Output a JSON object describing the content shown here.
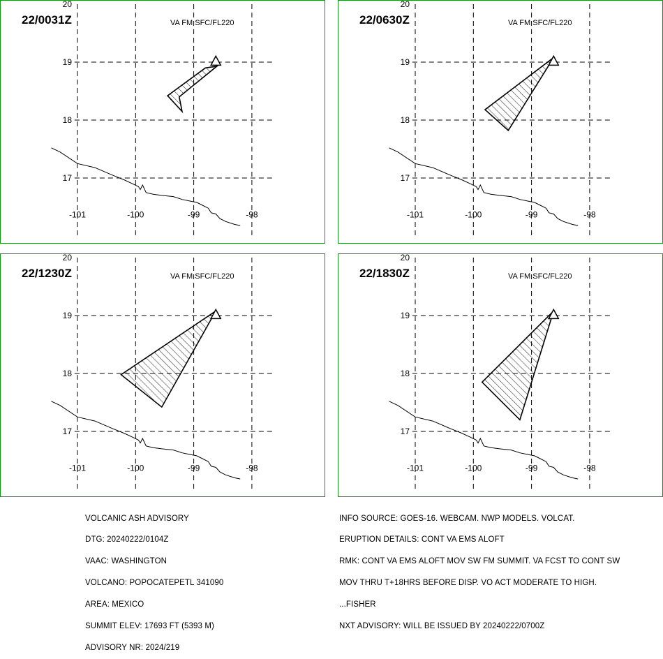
{
  "panels": [
    {
      "time": "22/0031Z",
      "level": "VA FM SFC/FL220",
      "polygon": [
        [
          -99.25,
          18.4
        ],
        [
          -98.6,
          18.93
        ],
        [
          -98.8,
          18.9
        ],
        [
          -99.45,
          18.42
        ],
        [
          -99.2,
          18.15
        ]
      ]
    },
    {
      "time": "22/0630Z",
      "level": "VA FM SFC/FL220",
      "polygon": [
        [
          -98.62,
          19.08
        ],
        [
          -99.8,
          18.18
        ],
        [
          -99.4,
          17.82
        ]
      ]
    },
    {
      "time": "22/1230Z",
      "level": "VA FM SFC/FL220",
      "polygon": [
        [
          -98.62,
          19.08
        ],
        [
          -100.25,
          17.98
        ],
        [
          -99.55,
          17.42
        ]
      ]
    },
    {
      "time": "22/1830Z",
      "level": "VA FM SFC/FL220",
      "polygon": [
        [
          -98.62,
          19.08
        ],
        [
          -99.85,
          17.85
        ],
        [
          -99.2,
          17.2
        ]
      ]
    }
  ],
  "map": {
    "lon_ticks": [
      "-101",
      "-100",
      "-99",
      "-98"
    ],
    "lat_ticks": [
      "17",
      "18",
      "19",
      "20"
    ],
    "lon_values": [
      -101,
      -100,
      -99,
      -98
    ],
    "lat_values": [
      17,
      18,
      19,
      20
    ],
    "volcano": {
      "lon": -98.62,
      "lat": 19.02
    },
    "coastline": [
      [
        -101.45,
        17.52
      ],
      [
        -101.3,
        17.45
      ],
      [
        -101.0,
        17.25
      ],
      [
        -100.7,
        17.18
      ],
      [
        -100.4,
        17.05
      ],
      [
        -100.2,
        16.97
      ],
      [
        -100.05,
        16.9
      ],
      [
        -99.95,
        16.85
      ],
      [
        -99.92,
        16.8
      ],
      [
        -99.88,
        16.88
      ],
      [
        -99.82,
        16.75
      ],
      [
        -99.7,
        16.72
      ],
      [
        -99.55,
        16.7
      ],
      [
        -99.35,
        16.68
      ],
      [
        -99.2,
        16.63
      ],
      [
        -99.05,
        16.6
      ],
      [
        -98.95,
        16.58
      ],
      [
        -98.85,
        16.53
      ],
      [
        -98.75,
        16.48
      ],
      [
        -98.7,
        16.4
      ],
      [
        -98.62,
        16.38
      ],
      [
        -98.55,
        16.3
      ],
      [
        -98.45,
        16.25
      ],
      [
        -98.3,
        16.2
      ],
      [
        -98.2,
        16.18
      ]
    ]
  },
  "advisory_left": [
    "VOLCANIC ASH ADVISORY",
    "DTG: 20240222/0104Z",
    "VAAC: WASHINGTON",
    "VOLCANO: POPOCATEPETL 341090",
    "AREA: MEXICO",
    "SUMMIT ELEV: 17693 FT (5393 M)",
    "ADVISORY NR: 2024/219"
  ],
  "advisory_right": [
    "INFO SOURCE: GOES-16. WEBCAM. NWP MODELS. VOLCAT.",
    "ERUPTION DETAILS: CONT VA EMS ALOFT",
    "RMK: CONT VA EMS ALOFT MOV SW FM SUMMIT. VA FCST TO CONT SW",
    "MOV THRU T+18HRS BEFORE DISP. VO ACT MODERATE TO HIGH.",
    "...FISHER",
    "NXT ADVISORY: WILL BE ISSUED BY 20240222/0700Z"
  ]
}
